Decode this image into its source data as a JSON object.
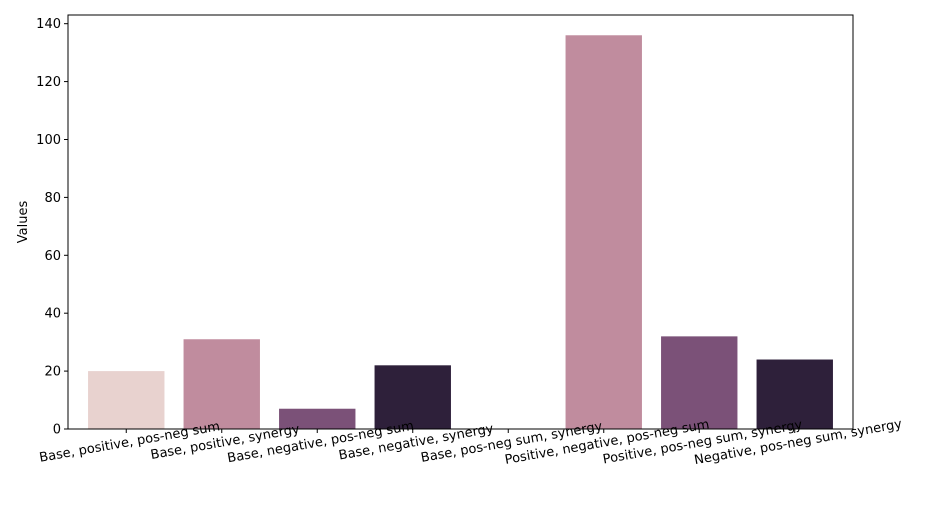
{
  "chart_data": {
    "type": "bar",
    "title": "",
    "xlabel": "",
    "ylabel": "Values",
    "ylim": [
      0,
      143
    ],
    "yticks": [
      0,
      20,
      40,
      60,
      80,
      100,
      120,
      140
    ],
    "grid": false,
    "legend": "none",
    "categories": [
      "Base, positive, pos-neg sum",
      "Base, positive, synergy",
      "Base, negative, pos-neg sum",
      "Base, negative, synergy",
      "Base, pos-neg sum, synergy",
      "Positive, negative, pos-neg sum",
      "Positive, pos-neg sum, synergy",
      "Negative, pos-neg sum, synergy"
    ],
    "values": [
      20,
      31,
      7,
      22,
      0,
      136,
      32,
      24
    ],
    "colors": [
      "#e8d2cf",
      "#c08c9e",
      "#7b5178",
      "#2e203a",
      "#e8d2cf",
      "#c08c9e",
      "#7b5178",
      "#2e203a"
    ]
  }
}
